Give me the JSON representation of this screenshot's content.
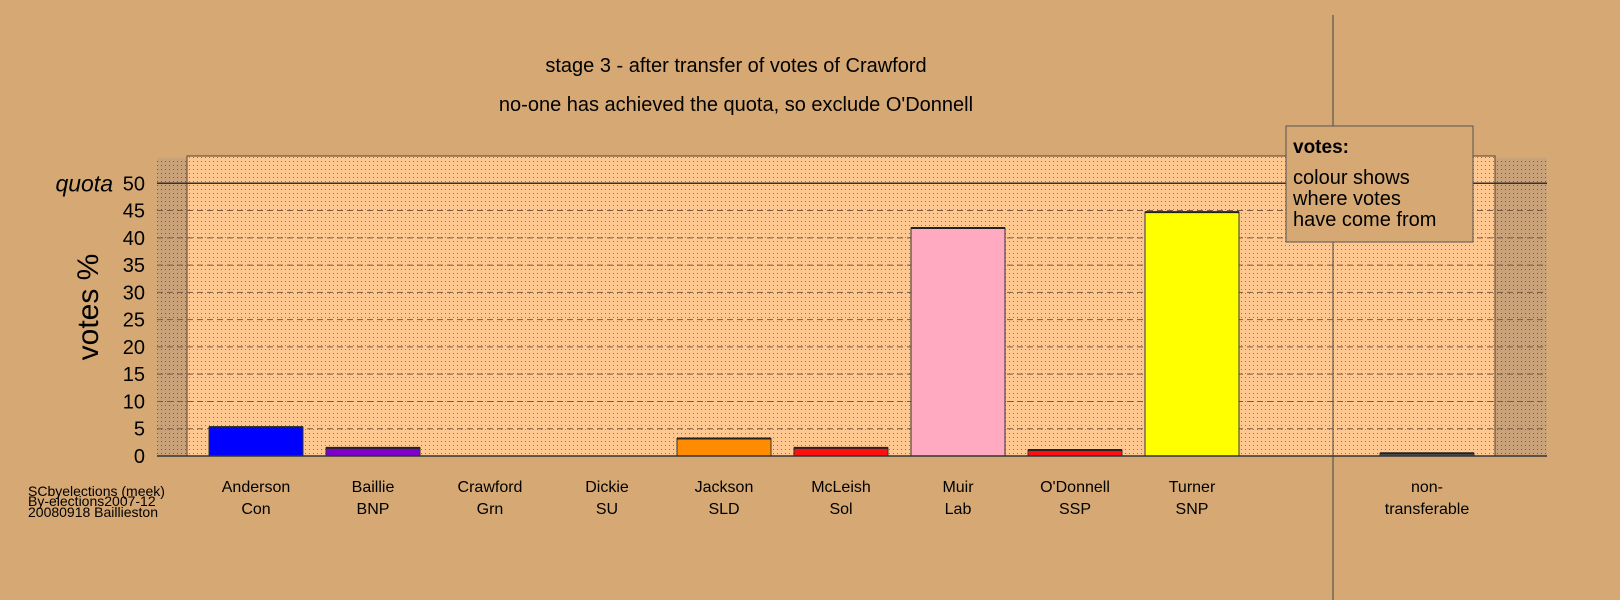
{
  "chart_data": {
    "type": "bar",
    "title": "stage 3 - after transfer of votes of Crawford",
    "subtitle": "no-one has achieved the quota, so exclude O'Donnell",
    "ylabel": "votes %",
    "ylim": [
      0,
      55
    ],
    "yticks": [
      0,
      5,
      10,
      15,
      20,
      25,
      30,
      35,
      40,
      45,
      50
    ],
    "quota": 50,
    "quota_label": "quota",
    "grid": true,
    "categories": [
      {
        "name": "Anderson",
        "party": "Con",
        "value": 5.3,
        "color": "#0000ff"
      },
      {
        "name": "Baillie",
        "party": "BNP",
        "value": 1.5,
        "color": "#7f00c8"
      },
      {
        "name": "Crawford",
        "party": "Grn",
        "value": 0,
        "color": "#00a000"
      },
      {
        "name": "Dickie",
        "party": "SU",
        "value": 0,
        "color": "#808080"
      },
      {
        "name": "Jackson",
        "party": "SLD",
        "value": 3.2,
        "color": "#ff8c00"
      },
      {
        "name": "McLeish",
        "party": "Sol",
        "value": 1.5,
        "color": "#ff1010"
      },
      {
        "name": "Muir",
        "party": "Lab",
        "value": 41.8,
        "color": "#ffaac0"
      },
      {
        "name": "O'Donnell",
        "party": "SSP",
        "value": 1.1,
        "color": "#ff1010"
      },
      {
        "name": "Turner",
        "party": "SNP",
        "value": 44.7,
        "color": "#ffff00"
      }
    ],
    "nontransferable": {
      "name": "non-",
      "party": "transferable",
      "value": 0.5,
      "color": "#555555"
    }
  },
  "legend": {
    "title": "votes:",
    "lines": [
      "colour shows",
      "where votes",
      "have come from"
    ]
  },
  "footer": {
    "lines": [
      "SCbyelections (meek)",
      "By-elections2007-12",
      "20080918 Baillieston"
    ]
  },
  "colors": {
    "background": "#d5a874",
    "plot_area": "#ffc890",
    "grid_dark": "#7a5a40"
  }
}
